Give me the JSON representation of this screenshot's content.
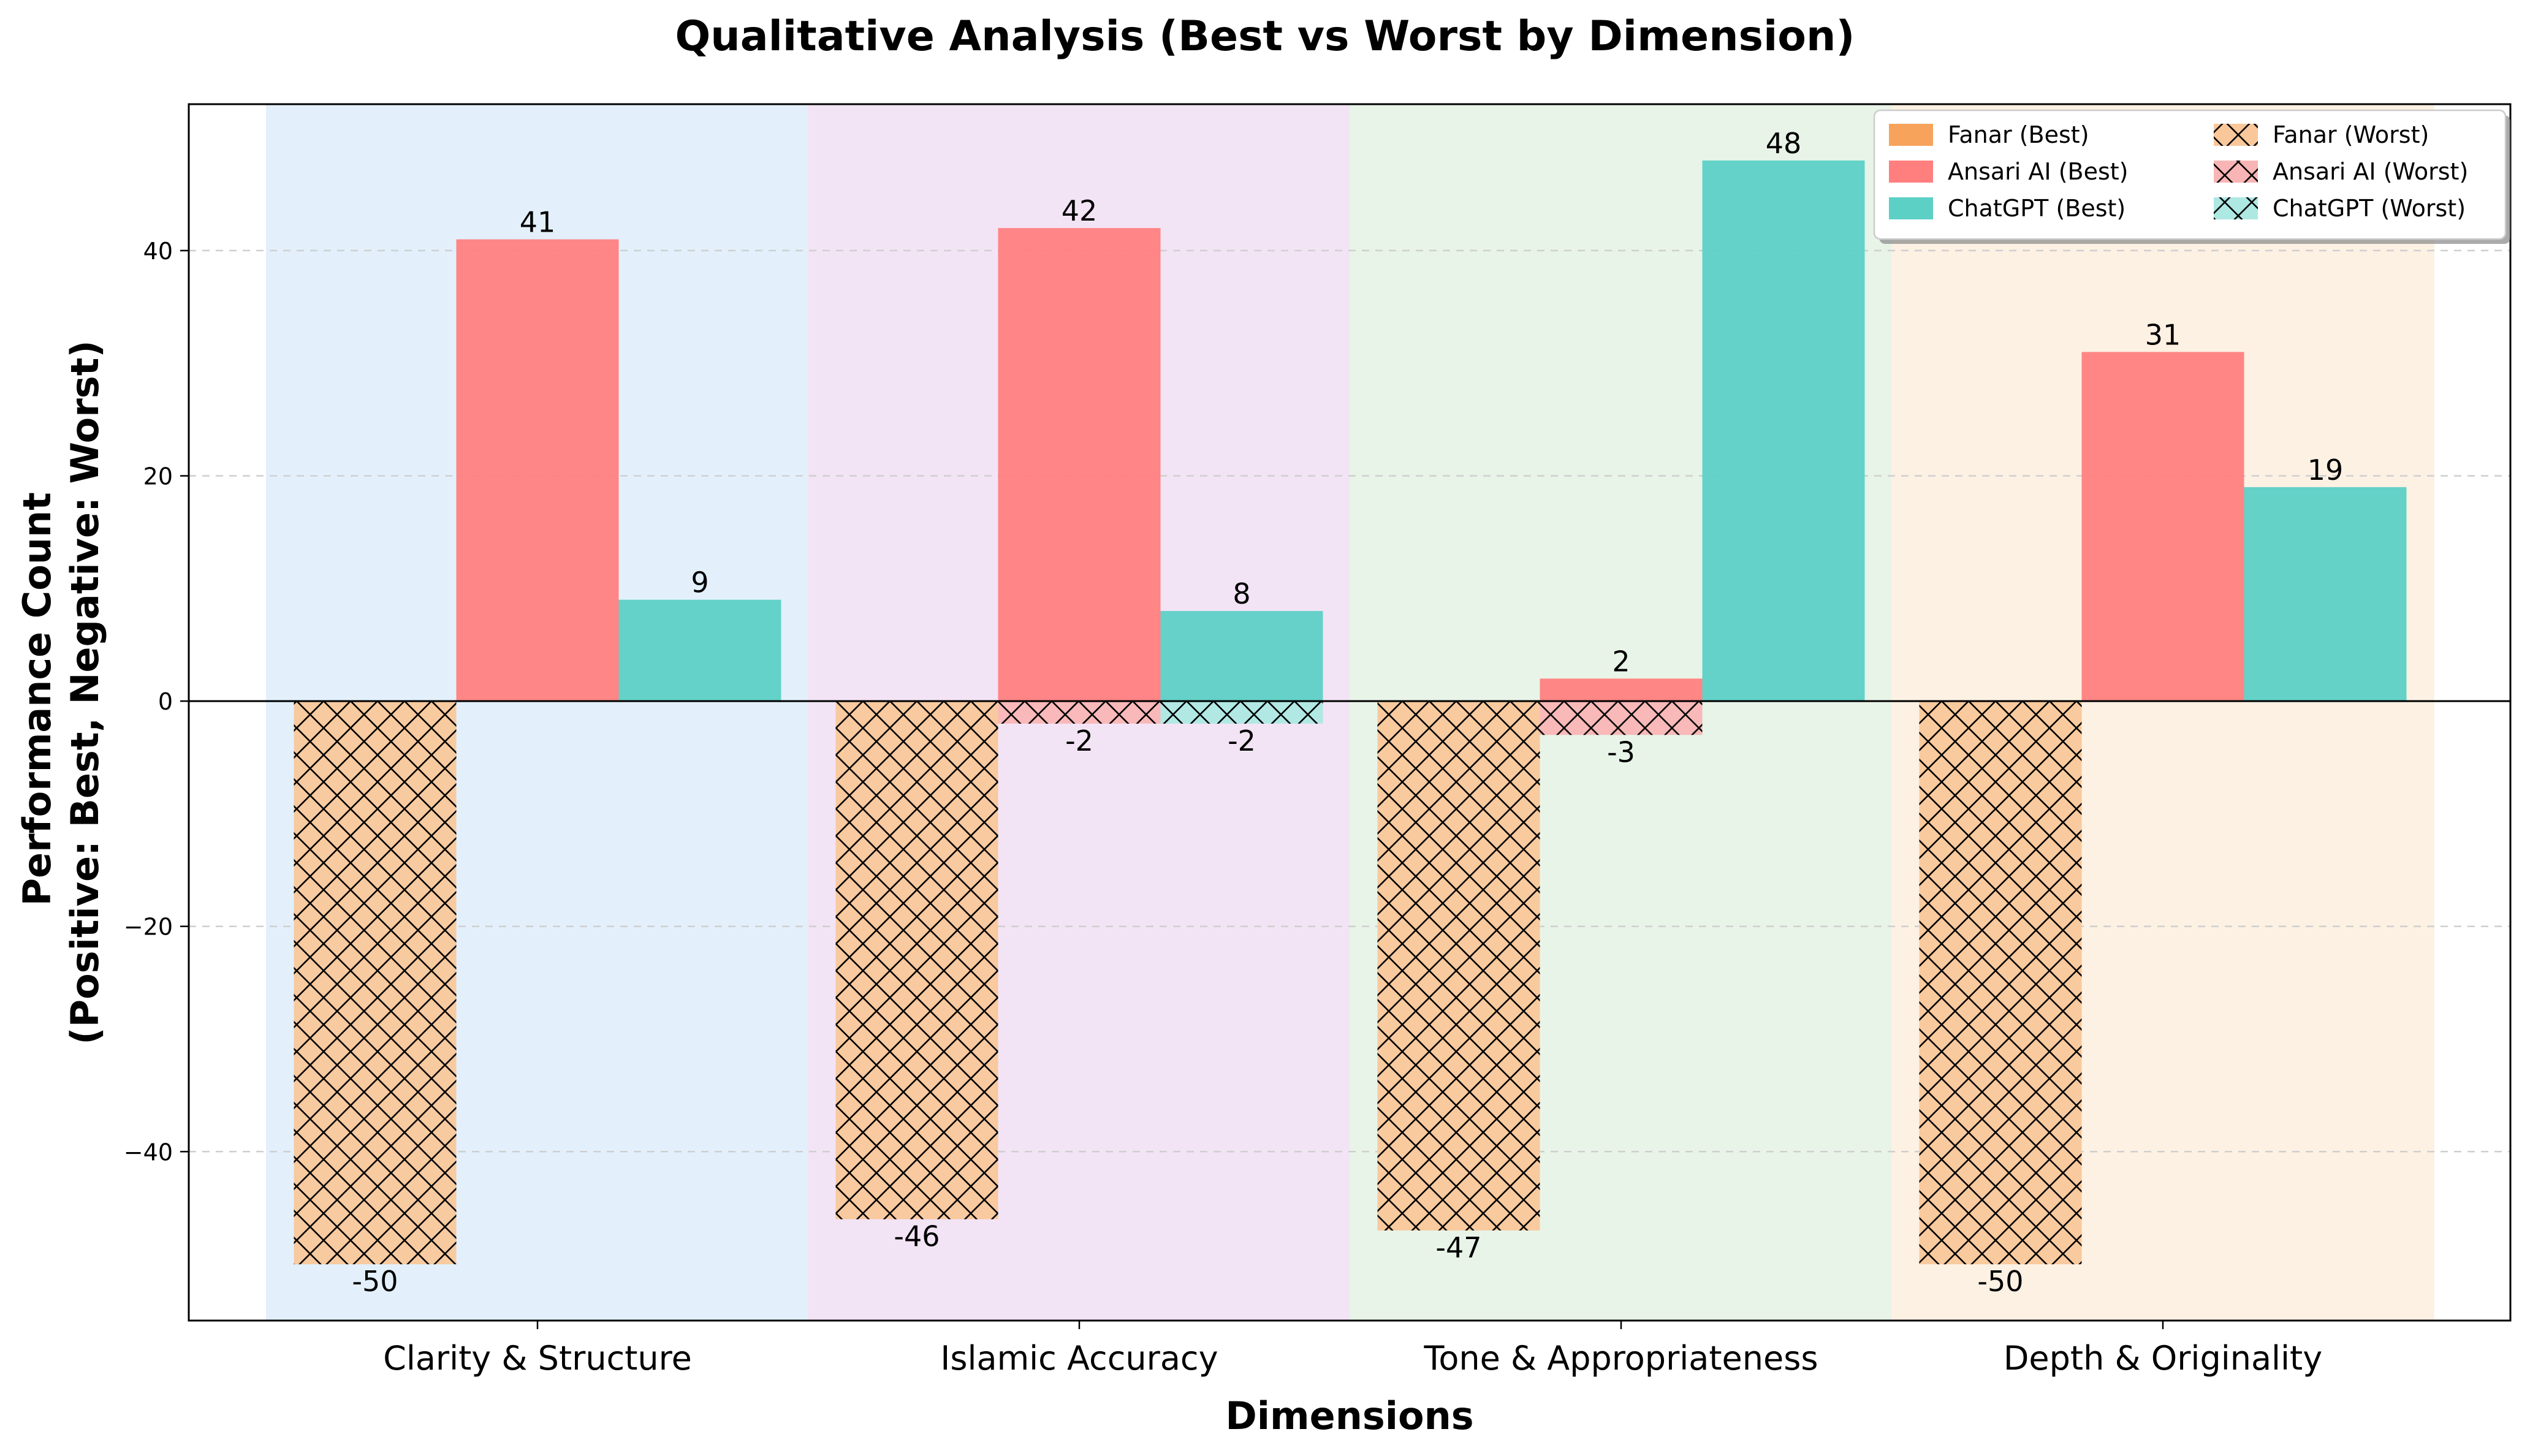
{
  "chart_data": {
    "type": "bar",
    "title": "Qualitative Analysis (Best vs Worst by Dimension)",
    "xlabel": "Dimensions",
    "ylabel_lines": [
      "Performance Count",
      "(Positive: Best, Negative: Worst)"
    ],
    "categories": [
      "Clarity & Structure",
      "Islamic Accuracy",
      "Tone & Appropriateness",
      "Depth & Originality"
    ],
    "band_colors": [
      "#e3f0fc",
      "#f3e4f5",
      "#e8f4e8",
      "#fdf1e3"
    ],
    "ylim": [
      -55,
      53
    ],
    "yticks": [
      -40,
      -20,
      0,
      20,
      40
    ],
    "grid": true,
    "legend_position": "top-right",
    "series": [
      {
        "name": "Fanar (Best)",
        "group": "best",
        "model": "fanar",
        "color": "#f7a35c",
        "values": [
          0,
          0,
          0,
          0
        ],
        "show_labels": [
          false,
          false,
          false,
          false
        ]
      },
      {
        "name": "Ansari AI (Best)",
        "group": "best",
        "model": "ansari",
        "color": "#ff7f7f",
        "values": [
          41,
          42,
          2,
          31
        ],
        "show_labels": [
          true,
          true,
          true,
          true
        ]
      },
      {
        "name": "ChatGPT (Best)",
        "group": "best",
        "model": "chatgpt",
        "color": "#5dd0c6",
        "values": [
          9,
          8,
          48,
          19
        ],
        "show_labels": [
          true,
          true,
          true,
          true
        ]
      },
      {
        "name": "Fanar (Worst)",
        "group": "worst",
        "model": "fanar",
        "color": "#f9c79a",
        "values": [
          -50,
          -46,
          -47,
          -50
        ],
        "show_labels": [
          true,
          true,
          true,
          true
        ]
      },
      {
        "name": "Ansari AI (Worst)",
        "group": "worst",
        "model": "ansari",
        "color": "#f9b5b5",
        "values": [
          0,
          -2,
          -3,
          0
        ],
        "show_labels": [
          false,
          true,
          true,
          false
        ]
      },
      {
        "name": "ChatGPT (Worst)",
        "group": "worst",
        "model": "chatgpt",
        "color": "#aee8e3",
        "values": [
          0,
          -2,
          0,
          0
        ],
        "show_labels": [
          false,
          true,
          false,
          false
        ]
      }
    ]
  }
}
